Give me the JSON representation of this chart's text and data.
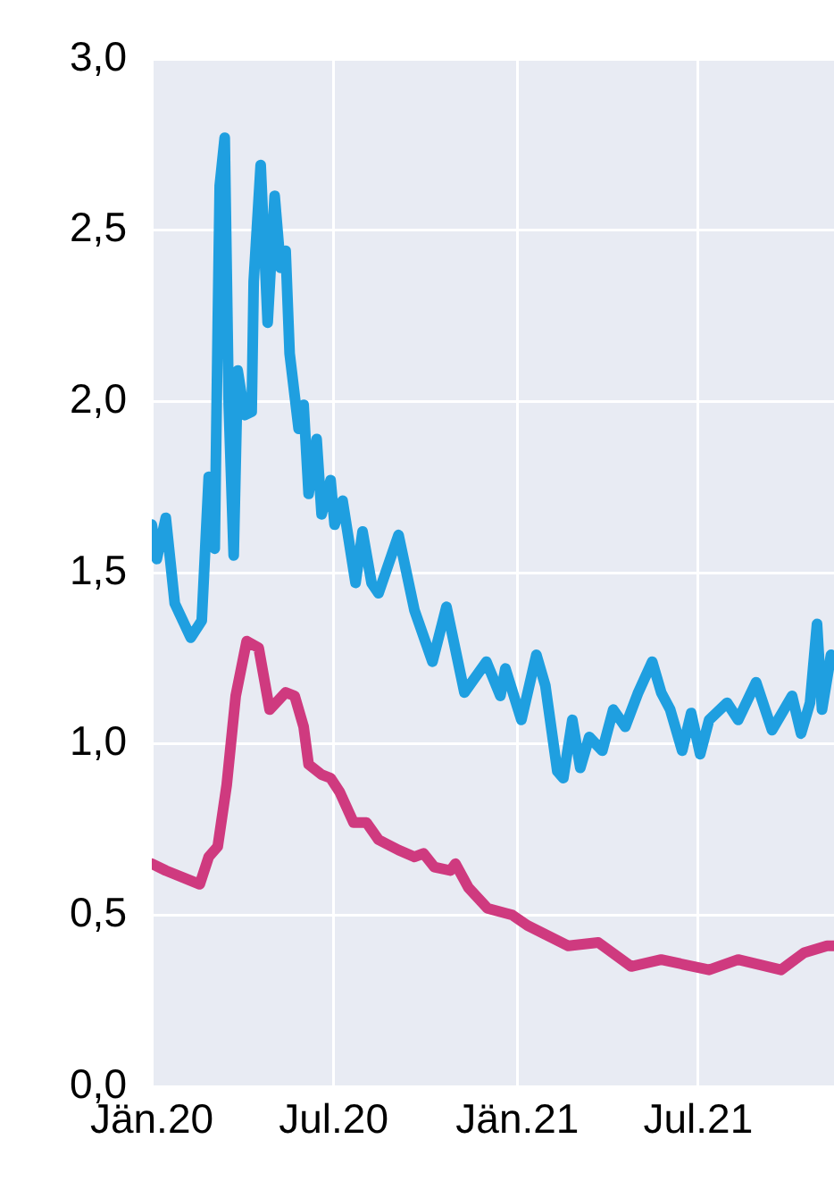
{
  "chart_data": {
    "type": "line",
    "xlim": [
      "2020-01-01",
      "2021-11-14"
    ],
    "xticks": [
      {
        "value": "2020-01-01",
        "label": "Jän.20"
      },
      {
        "value": "2020-07-01",
        "label": "Jul.20"
      },
      {
        "value": "2021-01-01",
        "label": "Jän.21"
      },
      {
        "value": "2021-07-01",
        "label": "Jul.21"
      }
    ],
    "ylim": [
      0,
      3
    ],
    "yticks": [
      {
        "value": 0,
        "label": "0,0"
      },
      {
        "value": 0.5,
        "label": "0,5"
      },
      {
        "value": 1,
        "label": "1,0"
      },
      {
        "value": 1.5,
        "label": "1,5"
      },
      {
        "value": 2,
        "label": "2,0"
      },
      {
        "value": 2.5,
        "label": "2,5"
      },
      {
        "value": 3,
        "label": "3,0"
      }
    ],
    "grid": true,
    "legend": false,
    "marker": "none",
    "line_style": "solid",
    "series": [
      {
        "color": "#1f9fe0",
        "x": [
          "2020-01-01",
          "2020-01-06",
          "2020-01-15",
          "2020-01-24",
          "2020-02-09",
          "2020-02-20",
          "2020-02-27",
          "2020-03-04",
          "2020-03-07",
          "2020-03-09",
          "2020-03-14",
          "2020-03-18",
          "2020-03-23",
          "2020-03-27",
          "2020-04-03",
          "2020-04-10",
          "2020-04-12",
          "2020-04-19",
          "2020-04-26",
          "2020-05-03",
          "2020-05-09",
          "2020-05-14",
          "2020-05-18",
          "2020-05-27",
          "2020-06-01",
          "2020-06-06",
          "2020-06-14",
          "2020-06-19",
          "2020-06-28",
          "2020-07-02",
          "2020-07-10",
          "2020-07-23",
          "2020-07-30",
          "2020-08-08",
          "2020-08-15",
          "2020-09-04",
          "2020-09-20",
          "2020-10-08",
          "2020-10-22",
          "2020-11-09",
          "2020-12-01",
          "2020-12-15",
          "2020-12-20",
          "2021-01-05",
          "2021-01-20",
          "2021-01-29",
          "2021-02-10",
          "2021-02-16",
          "2021-02-25",
          "2021-03-05",
          "2021-03-14",
          "2021-03-27",
          "2021-04-07",
          "2021-04-19",
          "2021-05-02",
          "2021-05-16",
          "2021-05-25",
          "2021-06-03",
          "2021-06-15",
          "2021-06-24",
          "2021-07-03",
          "2021-07-12",
          "2021-07-30",
          "2021-08-10",
          "2021-08-28",
          "2021-09-13",
          "2021-10-03",
          "2021-10-12",
          "2021-10-21",
          "2021-10-28",
          "2021-11-02",
          "2021-11-11"
        ],
        "values": [
          1.64,
          1.54,
          1.66,
          1.41,
          1.31,
          1.36,
          1.78,
          1.57,
          2.22,
          2.63,
          2.77,
          1.99,
          1.55,
          2.09,
          1.96,
          1.97,
          2.35,
          2.69,
          2.23,
          2.6,
          2.39,
          2.44,
          2.14,
          1.92,
          1.99,
          1.73,
          1.89,
          1.67,
          1.77,
          1.64,
          1.71,
          1.47,
          1.62,
          1.47,
          1.44,
          1.61,
          1.39,
          1.24,
          1.4,
          1.15,
          1.24,
          1.14,
          1.22,
          1.07,
          1.26,
          1.17,
          0.92,
          0.9,
          1.07,
          0.93,
          1.02,
          0.98,
          1.1,
          1.05,
          1.15,
          1.24,
          1.15,
          1.1,
          0.98,
          1.09,
          0.97,
          1.07,
          1.12,
          1.07,
          1.18,
          1.04,
          1.14,
          1.03,
          1.12,
          1.35,
          1.1,
          1.26
        ]
      },
      {
        "color": "#cf3a7f",
        "x": [
          "2020-01-01",
          "2020-01-15",
          "2020-02-18",
          "2020-02-27",
          "2020-03-07",
          "2020-03-16",
          "2020-03-25",
          "2020-04-05",
          "2020-04-17",
          "2020-04-28",
          "2020-05-14",
          "2020-05-23",
          "2020-06-01",
          "2020-06-06",
          "2020-06-19",
          "2020-06-28",
          "2020-07-07",
          "2020-07-21",
          "2020-08-03",
          "2020-08-15",
          "2020-09-04",
          "2020-09-20",
          "2020-09-29",
          "2020-10-10",
          "2020-10-26",
          "2020-10-31",
          "2020-11-13",
          "2020-12-02",
          "2020-12-27",
          "2021-01-11",
          "2021-02-21",
          "2021-03-23",
          "2021-04-25",
          "2021-05-25",
          "2021-07-12",
          "2021-08-10",
          "2021-09-22",
          "2021-10-15",
          "2021-11-07",
          "2021-11-14"
        ],
        "values": [
          0.65,
          0.63,
          0.59,
          0.67,
          0.7,
          0.88,
          1.14,
          1.3,
          1.28,
          1.1,
          1.15,
          1.14,
          1.05,
          0.94,
          0.91,
          0.9,
          0.86,
          0.77,
          0.77,
          0.72,
          0.69,
          0.67,
          0.68,
          0.64,
          0.63,
          0.65,
          0.58,
          0.52,
          0.5,
          0.47,
          0.41,
          0.42,
          0.35,
          0.37,
          0.34,
          0.37,
          0.34,
          0.39,
          0.41,
          0.41
        ]
      }
    ]
  }
}
